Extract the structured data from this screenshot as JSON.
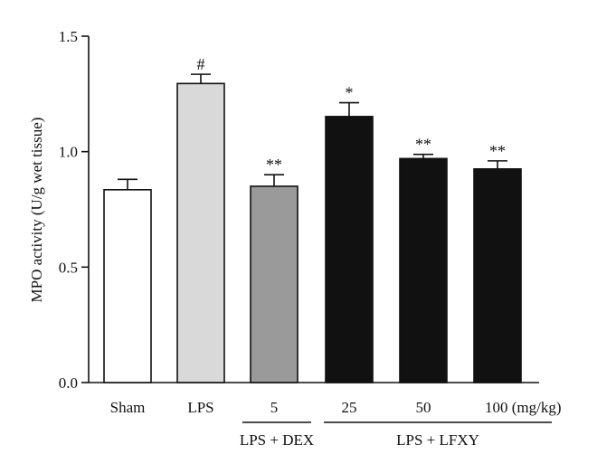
{
  "chart_data": {
    "type": "bar",
    "categories": [
      "Sham",
      "LPS",
      "5",
      "25",
      "50",
      "100 (mg/kg)"
    ],
    "values": [
      0.835,
      1.295,
      0.85,
      1.152,
      0.97,
      0.925
    ],
    "errors": [
      0.045,
      0.04,
      0.05,
      0.06,
      0.018,
      0.035
    ],
    "significance": [
      "",
      "#",
      "**",
      "*",
      "**",
      "**"
    ],
    "bar_colors": [
      "#ffffff",
      "#d9d9d9",
      "#9a9a9a",
      "#111111",
      "#111111",
      "#111111"
    ],
    "ylabel": "MPO activity (U/g wet tissue)",
    "ylim": [
      0,
      1.5
    ],
    "yticks": [
      "0.0",
      "0.5",
      "1.0",
      "1.5"
    ],
    "groups": [
      {
        "label": "LPS + DEX",
        "categories": [
          "5"
        ]
      },
      {
        "label": "LPS + LFXY",
        "categories": [
          "25",
          "50",
          "100 (mg/kg)"
        ]
      }
    ],
    "grid": false,
    "legend": "none"
  }
}
